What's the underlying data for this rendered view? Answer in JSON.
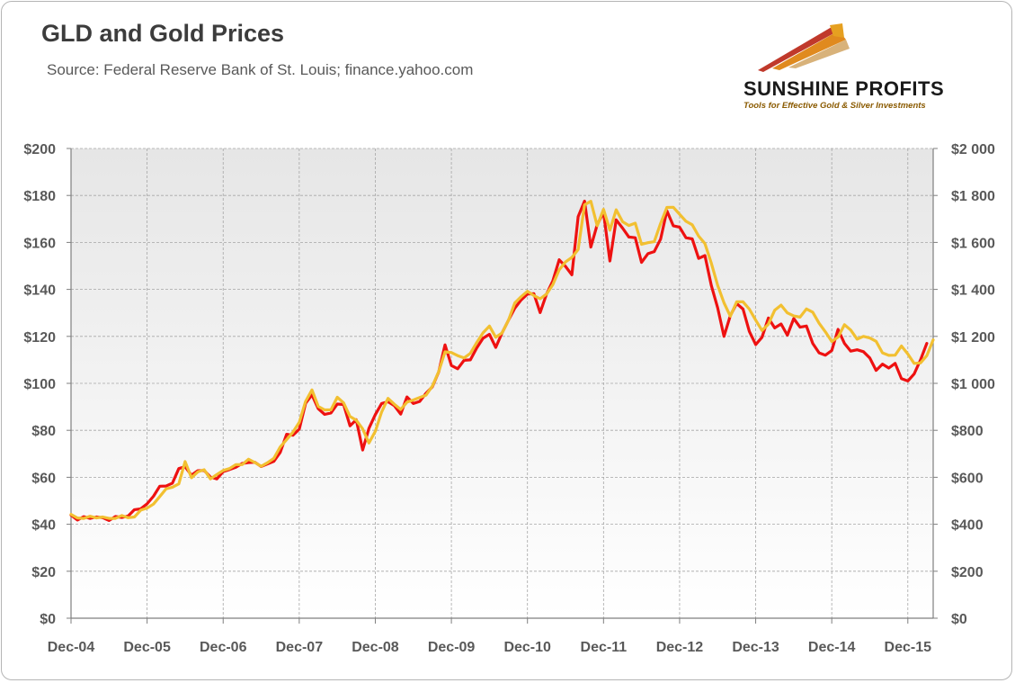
{
  "title": "GLD and Gold Prices",
  "subtitle": "Source: Federal Reserve Bank of St. Louis; finance.yahoo.com",
  "logo": {
    "name": "SUNSHINE PROFITS",
    "tagline": "Tools for Effective Gold & Silver Investments"
  },
  "colors": {
    "gld": "#ee1111",
    "gold": "#f2c031",
    "axis": "#7f7f7f",
    "grid": "#a6a6a6",
    "text": "#595959"
  },
  "chart_data": {
    "type": "line",
    "title": "GLD and Gold Prices",
    "x_tick_labels": [
      "Dec-04",
      "Dec-05",
      "Dec-06",
      "Dec-07",
      "Dec-08",
      "Dec-09",
      "Dec-10",
      "Dec-11",
      "Dec-12",
      "Dec-13",
      "Dec-14",
      "Dec-15"
    ],
    "y_left": {
      "range": [
        0,
        200
      ],
      "tick_labels": [
        "$0",
        "$20",
        "$40",
        "$60",
        "$80",
        "$100",
        "$120",
        "$140",
        "$160",
        "$180",
        "$200"
      ]
    },
    "y_right": {
      "range": [
        0,
        2000
      ],
      "tick_labels": [
        "$0",
        "$200",
        "$400",
        "$600",
        "$800",
        "$1 000",
        "$1 200",
        "$1 400",
        "$1 600",
        "$1 800",
        "$2 000"
      ]
    },
    "x_range": [
      0,
      136
    ],
    "grid": true,
    "series": [
      {
        "axis": "left",
        "color": "#ee1111",
        "values": [
          43.9,
          41.8,
          43.2,
          42.5,
          43.1,
          42.8,
          41.6,
          43.3,
          42.9,
          43.5,
          46.2,
          46.6,
          48.7,
          51.9,
          56.2,
          56.3,
          57.5,
          63.7,
          64.5,
          60.9,
          62.8,
          62.9,
          60.1,
          59.3,
          62.4,
          63.3,
          64.3,
          65.9,
          66.3,
          66.4,
          64.6,
          65.7,
          66.8,
          70.6,
          78.3,
          77.9,
          80.5,
          91.5,
          95.1,
          89.2,
          86.8,
          87.4,
          91.2,
          91.0,
          81.9,
          84.5,
          71.6,
          80.9,
          86.7,
          91.4,
          92.2,
          90.5,
          86.9,
          94.2,
          91.4,
          92.3,
          95.8,
          98.5,
          104.9,
          116.4,
          107.6,
          106.2,
          109.8,
          110.0,
          115.1,
          119.2,
          120.9,
          115.3,
          121.5,
          126.9,
          132.0,
          135.5,
          138.0,
          138.2,
          130.1,
          138.0,
          143.6,
          152.6,
          149.8,
          146.2,
          171.0,
          177.6,
          158.0,
          167.6,
          172.8,
          152.1,
          169.6,
          166.1,
          162.3,
          162.0,
          151.5,
          155.2,
          156.1,
          161.4,
          173.5,
          167.1,
          166.5,
          162.0,
          161.5,
          153.2,
          154.4,
          141.7,
          132.1,
          120.0,
          128.9,
          134.0,
          131.6,
          122.1,
          116.5,
          119.6,
          127.8,
          123.6,
          125.3,
          120.5,
          127.6,
          123.9,
          124.4,
          117.0,
          113.0,
          112.0,
          114.0,
          123.0,
          117.0,
          113.7,
          114.3,
          113.5,
          110.8,
          105.5,
          108.2,
          106.5,
          108.5,
          102.0,
          101.0,
          104.0,
          110.0,
          117.0
        ]
      },
      {
        "axis": "right",
        "color": "#f2c031",
        "values": [
          442,
          427,
          425,
          434,
          427,
          431,
          425,
          425,
          437,
          428,
          431,
          460,
          469,
          486,
          518,
          551,
          558,
          572,
          667,
          598,
          623,
          632,
          593,
          612,
          629,
          637,
          654,
          654,
          677,
          663,
          647,
          662,
          681,
          729,
          760,
          792,
          834,
          923,
          972,
          902,
          887,
          887,
          941,
          917,
          859,
          843,
          806,
          746,
          796,
          878,
          936,
          911,
          889,
          920,
          929,
          940,
          950,
          988,
          1050,
          1134,
          1131,
          1118,
          1108,
          1128,
          1174,
          1215,
          1244,
          1196,
          1215,
          1269,
          1342,
          1369,
          1392,
          1374,
          1360,
          1380,
          1420,
          1483,
          1517,
          1536,
          1570,
          1760,
          1775,
          1671,
          1741,
          1652,
          1739,
          1688,
          1672,
          1682,
          1592,
          1599,
          1603,
          1681,
          1749,
          1750,
          1720,
          1690,
          1675,
          1627,
          1595,
          1512,
          1417,
          1343,
          1286,
          1347,
          1347,
          1316,
          1269,
          1225,
          1252,
          1311,
          1333,
          1300,
          1287,
          1282,
          1317,
          1303,
          1256,
          1219,
          1178,
          1197,
          1250,
          1227,
          1188,
          1200,
          1193,
          1179,
          1130,
          1119,
          1120,
          1159,
          1125,
          1085,
          1087,
          1118,
          1185
        ]
      }
    ]
  }
}
